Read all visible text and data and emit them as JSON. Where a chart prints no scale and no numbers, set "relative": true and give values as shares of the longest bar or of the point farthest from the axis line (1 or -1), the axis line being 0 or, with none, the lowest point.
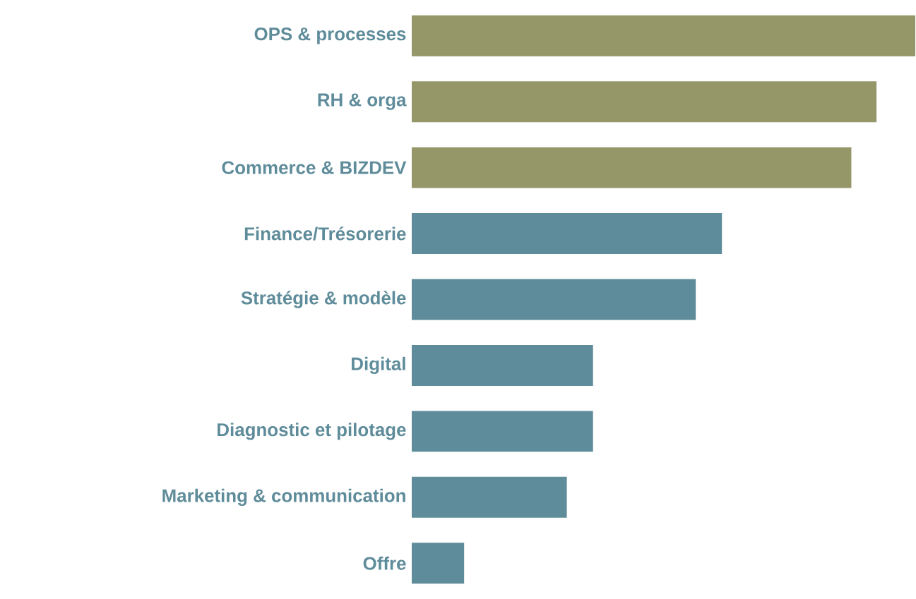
{
  "chart_data": {
    "type": "bar",
    "orientation": "horizontal",
    "relative": true,
    "categories": [
      "OPS & processes",
      "RH & orga",
      "Commerce & BIZDEV",
      "Finance/Trésorerie",
      "Stratégie & modèle",
      "Digital",
      "Diagnostic et pilotage",
      "Marketing & communication",
      "Offre"
    ],
    "values": [
      1,
      0.923,
      0.873,
      0.616,
      0.564,
      0.36,
      0.36,
      0.308,
      0.104
    ],
    "colors": [
      "#959769",
      "#959769",
      "#959769",
      "#5f8c9a",
      "#5f8c9a",
      "#5f8c9a",
      "#5f8c9a",
      "#5f8c9a",
      "#5f8c9a"
    ]
  }
}
